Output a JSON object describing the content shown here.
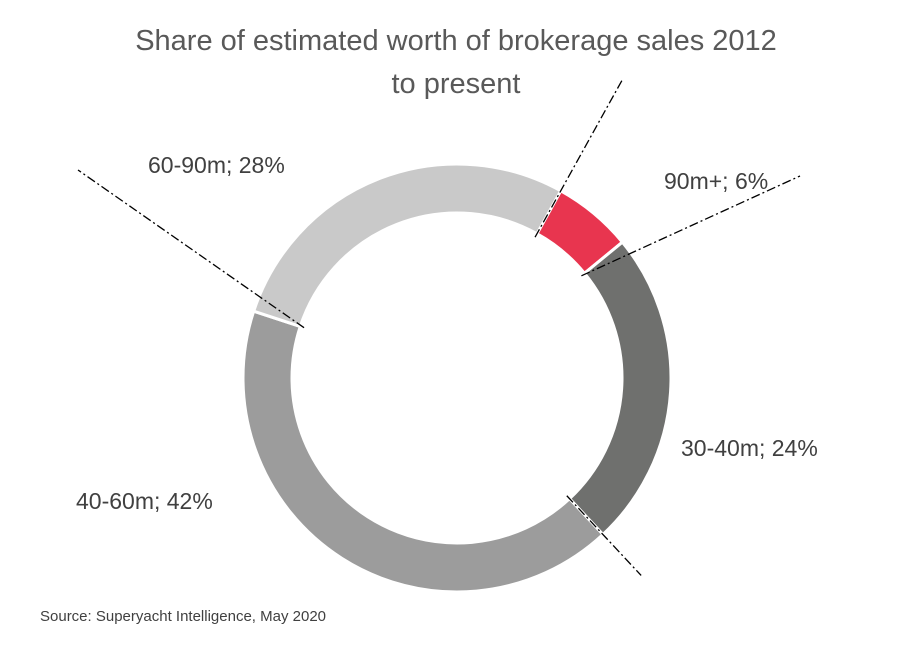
{
  "chart_data": {
    "type": "pie",
    "variant": "donut",
    "title": "Share of estimated worth of  brokerage sales 2012 to present",
    "title_lines": [
      "Share of estimated worth of  brokerage sales 2012",
      "to present"
    ],
    "slices": [
      {
        "category": "90m+",
        "value": 6,
        "label": "90m+; 6%",
        "color": "#e8354f"
      },
      {
        "category": "30-40m",
        "value": 24,
        "label": "30-40m; 24%",
        "color": "#6f706e"
      },
      {
        "category": "40-60m",
        "value": 42,
        "label": "40-60m; 42%",
        "color": "#9c9c9c"
      },
      {
        "category": "60-90m",
        "value": 28,
        "label": "60-90m; 28%",
        "color": "#c9c9c9"
      }
    ],
    "legend": "none",
    "source": "Source: Superyacht Intelligence,  May 2020"
  }
}
